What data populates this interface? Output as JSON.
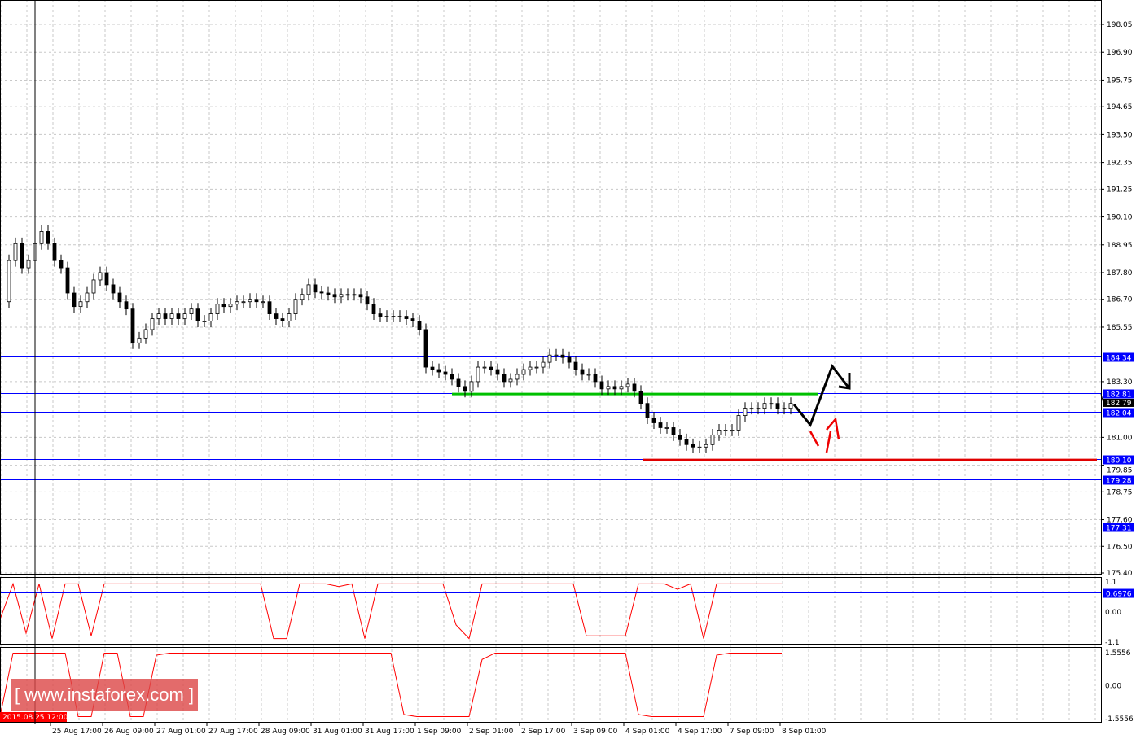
{
  "chart_data": {
    "type": "candlestick",
    "price_axis": {
      "range": [
        175.4,
        198.05
      ],
      "ticks": [
        "198.05",
        "196.90",
        "195.75",
        "194.65",
        "193.50",
        "192.35",
        "191.25",
        "190.10",
        "188.95",
        "187.80",
        "186.70",
        "185.55",
        "183.30",
        "181.00",
        "179.85",
        "178.75",
        "177.60",
        "176.50",
        "175.40"
      ],
      "current_price": "182.79"
    },
    "time_axis": {
      "cursor_label": "2015.08.25 12:00",
      "ticks": [
        "25 Aug 17:00",
        "26 Aug 09:00",
        "27 Aug 01:00",
        "27 Aug 17:00",
        "28 Aug 09:00",
        "31 Aug 01:00",
        "31 Aug 17:00",
        "1 Sep 09:00",
        "2 Sep 01:00",
        "2 Sep 17:00",
        "3 Sep 09:00",
        "4 Sep 01:00",
        "4 Sep 17:00",
        "7 Sep 09:00",
        "8 Sep 01:00"
      ]
    },
    "closes": [
      186.6,
      188.3,
      189.0,
      188.0,
      188.3,
      189.0,
      189.5,
      189.0,
      188.3,
      188.0,
      186.96,
      186.4,
      186.6,
      186.96,
      187.5,
      187.8,
      187.3,
      186.96,
      186.6,
      186.3,
      184.9,
      185.1,
      185.45,
      185.9,
      186.1,
      185.9,
      186.1,
      185.9,
      186.1,
      186.3,
      185.8,
      185.8,
      186.1,
      186.5,
      186.4,
      186.5,
      186.6,
      186.6,
      186.7,
      186.6,
      186.6,
      186.1,
      185.9,
      185.8,
      186.1,
      186.7,
      186.9,
      187.3,
      187.0,
      186.96,
      186.9,
      186.8,
      186.9,
      186.9,
      186.9,
      186.8,
      186.5,
      186.1,
      186.0,
      186.0,
      186.0,
      186.0,
      185.9,
      185.8,
      185.45,
      183.9,
      183.8,
      183.7,
      183.6,
      183.4,
      183.1,
      182.9,
      183.3,
      183.9,
      183.9,
      183.8,
      183.6,
      183.3,
      183.4,
      183.6,
      183.8,
      183.9,
      183.9,
      184.1,
      184.4,
      184.4,
      184.3,
      184.1,
      183.8,
      183.6,
      183.6,
      183.3,
      183.0,
      183.1,
      183.0,
      183.1,
      183.2,
      182.9,
      182.4,
      181.8,
      181.6,
      181.4,
      181.4,
      181.1,
      180.9,
      180.7,
      180.6,
      180.6,
      180.7,
      181.1,
      181.3,
      181.3,
      181.3,
      181.9,
      182.2,
      182.2,
      182.2,
      182.4,
      182.4,
      182.2,
      182.2,
      182.4
    ],
    "levels": [
      {
        "label": "184.34",
        "value": 184.34,
        "color": "#0000ff"
      },
      {
        "label": "182.81",
        "value": 182.81,
        "color": "#0000ff"
      },
      {
        "label": "182.04",
        "value": 182.04,
        "color": "#0000ff"
      },
      {
        "label": "180.10",
        "value": 180.1,
        "color": "#0000ff"
      },
      {
        "label": "179.28",
        "value": 179.28,
        "color": "#0000ff"
      },
      {
        "label": "177.31",
        "value": 177.31,
        "color": "#0000ff"
      }
    ],
    "support_line": {
      "value": 182.79,
      "color": "#00c000"
    },
    "target_line": {
      "value": 180.1,
      "color": "#e00000"
    },
    "indicators": [
      {
        "range": [
          -1.1,
          1.1
        ],
        "ticks": [
          "1.1",
          "0.00",
          "-1.1"
        ],
        "level_label": "0.6976",
        "level": 0.6976,
        "color": "#ff0000",
        "values": [
          -0.3,
          1.0,
          -0.8,
          1.0,
          -1.0,
          1.0,
          1.0,
          -0.9,
          1.0,
          1.0,
          1.0,
          1.0,
          1.0,
          1.0,
          1.0,
          1.0,
          1.0,
          1.0,
          1.0,
          1.0,
          1.0,
          -1.0,
          -1.0,
          1.0,
          1.0,
          1.0,
          0.9,
          1.0,
          -1.0,
          1.0,
          1.0,
          1.0,
          1.0,
          1.0,
          1.0,
          -0.5,
          -1.0,
          1.0,
          1.0,
          1.0,
          1.0,
          1.0,
          1.0,
          1.0,
          1.0,
          -0.9,
          -0.9,
          -0.9,
          -0.9,
          1.0,
          1.0,
          1.0,
          0.8,
          1.0,
          -1.0,
          1.0,
          1.0,
          1.0,
          1.0,
          1.0,
          1.0
        ]
      },
      {
        "range": [
          -1.5556,
          1.5556
        ],
        "ticks": [
          "1.5556",
          "0.00",
          "-1.5556"
        ],
        "color": "#ff0000",
        "values": [
          -1.5,
          1.5,
          1.5,
          1.5,
          1.5,
          1.5,
          -1.5,
          -1.5,
          1.5,
          1.5,
          -1.5,
          -1.5,
          1.4,
          1.5,
          1.5,
          1.5,
          1.5,
          1.5,
          1.5,
          1.5,
          1.5,
          1.5,
          1.5,
          1.5,
          1.5,
          1.5,
          1.5,
          1.5,
          1.5,
          1.5,
          1.5,
          -1.4,
          -1.5,
          -1.5,
          -1.5,
          -1.5,
          -1.5,
          1.2,
          1.5,
          1.5,
          1.5,
          1.5,
          1.5,
          1.5,
          1.5,
          1.5,
          1.5,
          1.5,
          1.5,
          -1.4,
          -1.5,
          -1.5,
          -1.5,
          -1.5,
          -1.5,
          1.4,
          1.5,
          1.5,
          1.5,
          1.5,
          1.5
        ]
      }
    ]
  },
  "watermark": "[ www.instaforex.com ]"
}
